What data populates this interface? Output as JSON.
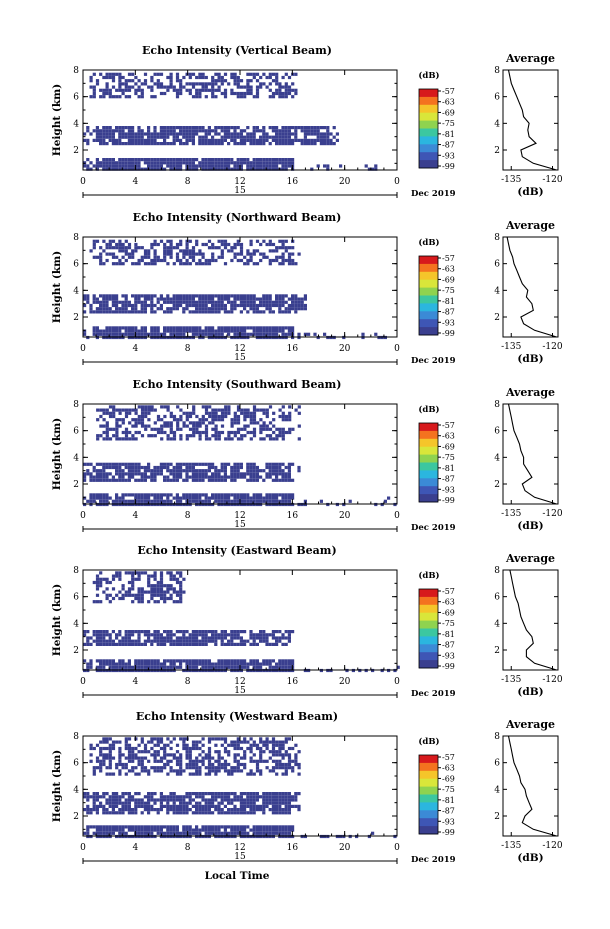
{
  "figure": {
    "xlabel": "Local Time",
    "month_label": "Dec 2019",
    "day_label": "15",
    "avg_title": "Average",
    "unit_label": "(dB)",
    "ylabel": "Height (km)",
    "avg_xlabel": "(dB)",
    "x_ticks": [
      "0",
      "4",
      "8",
      "12",
      "16",
      "20",
      "0"
    ],
    "y_ticks": [
      "2",
      "4",
      "6",
      "8"
    ],
    "colorbar_ticks": [
      "-57",
      "-63",
      "-69",
      "-75",
      "-81",
      "-87",
      "-93",
      "-99"
    ],
    "colorbar_colors": [
      "#d7191c",
      "#f4731f",
      "#f5c52a",
      "#d9e63a",
      "#8fd34f",
      "#3cc7a0",
      "#2bb6df",
      "#3b8ad6",
      "#3e56b5",
      "#3a3f8f"
    ]
  },
  "chart_data": [
    {
      "type": "heatmap",
      "title": "Echo Intensity (Vertical Beam)",
      "ylabel": "Height (km)",
      "xlabel": "Local Time",
      "x_range_hours": [
        0,
        24
      ],
      "y_range_km": [
        0.5,
        8
      ],
      "colorbar": {
        "label": "(dB)",
        "range": [
          -99,
          -57
        ]
      },
      "echo_layers": [
        {
          "height_km": [
            6.0,
            7.8
          ],
          "time_h": [
            0.5,
            16.5
          ],
          "level_db": -99
        },
        {
          "height_km": [
            2.6,
            3.8
          ],
          "time_h": [
            0,
            19.5
          ],
          "level_db": -99
        },
        {
          "height_km": [
            0.5,
            1.4
          ],
          "time_h": [
            0,
            24
          ],
          "level_db": -99
        }
      ],
      "average": {
        "title": "Average",
        "xlabel": "(dB)",
        "x_ticks": [
          "-135",
          "-120"
        ],
        "xlim": [
          -138,
          -118
        ],
        "height_km": [
          0.5,
          1.0,
          1.5,
          2.0,
          2.5,
          3.0,
          3.5,
          4.0,
          4.5,
          5.0,
          5.5,
          6.0,
          6.5,
          7.0,
          7.5,
          8.0
        ],
        "value_db": [
          -118.5,
          -127.0,
          -131.0,
          -131.5,
          -126.0,
          -128.5,
          -129.0,
          -128.5,
          -130.5,
          -131.0,
          -132.0,
          -133.0,
          -134.0,
          -135.0,
          -135.5,
          -136.0
        ]
      }
    },
    {
      "type": "heatmap",
      "title": "Echo Intensity (Northward Beam)",
      "ylabel": "Height (km)",
      "xlabel": "Local Time",
      "x_range_hours": [
        0,
        24
      ],
      "y_range_km": [
        0.5,
        8
      ],
      "colorbar": {
        "label": "(dB)",
        "range": [
          -99,
          -57
        ]
      },
      "echo_layers": [
        {
          "height_km": [
            6.0,
            7.8
          ],
          "time_h": [
            0.5,
            16.5
          ],
          "level_db": -99
        },
        {
          "height_km": [
            2.5,
            3.7
          ],
          "time_h": [
            0,
            17
          ],
          "level_db": -99
        },
        {
          "height_km": [
            0.5,
            1.3
          ],
          "time_h": [
            0,
            24
          ],
          "level_db": -99
        }
      ],
      "average": {
        "title": "Average",
        "xlabel": "(dB)",
        "x_ticks": [
          "-135",
          "-120"
        ],
        "xlim": [
          -138,
          -118
        ],
        "height_km": [
          0.5,
          1.0,
          1.5,
          2.0,
          2.5,
          3.0,
          3.5,
          4.0,
          4.5,
          5.0,
          5.5,
          6.0,
          6.5,
          7.0,
          7.5,
          8.0
        ],
        "value_db": [
          -118.5,
          -126.5,
          -130.5,
          -131.5,
          -127.0,
          -127.5,
          -129.5,
          -129.0,
          -131.0,
          -132.0,
          -133.0,
          -134.0,
          -134.5,
          -135.5,
          -136.0,
          -136.5
        ]
      }
    },
    {
      "type": "heatmap",
      "title": "Echo Intensity (Southward Beam)",
      "ylabel": "Height (km)",
      "xlabel": "Local Time",
      "x_range_hours": [
        0,
        24
      ],
      "y_range_km": [
        0.5,
        8
      ],
      "colorbar": {
        "label": "(dB)",
        "range": [
          -99,
          -57
        ]
      },
      "echo_layers": [
        {
          "height_km": [
            5.5,
            7.9
          ],
          "time_h": [
            1,
            16.5
          ],
          "level_db": -99
        },
        {
          "height_km": [
            2.2,
            3.6
          ],
          "time_h": [
            0,
            16.5
          ],
          "level_db": -99
        },
        {
          "height_km": [
            0.5,
            1.3
          ],
          "time_h": [
            0,
            24
          ],
          "level_db": -99
        }
      ],
      "average": {
        "title": "Average",
        "xlabel": "(dB)",
        "x_ticks": [
          "-135",
          "-120"
        ],
        "xlim": [
          -138,
          -118
        ],
        "height_km": [
          0.5,
          1.0,
          1.5,
          2.0,
          2.5,
          3.0,
          3.5,
          4.0,
          4.5,
          5.0,
          5.5,
          6.0,
          6.5,
          7.0,
          7.5,
          8.0
        ],
        "value_db": [
          -118.5,
          -126.5,
          -130.0,
          -131.0,
          -127.5,
          -129.0,
          -130.5,
          -130.5,
          -131.5,
          -132.0,
          -133.0,
          -134.0,
          -134.5,
          -135.0,
          -135.5,
          -136.0
        ]
      }
    },
    {
      "type": "heatmap",
      "title": "Echo Intensity (Eastward Beam)",
      "ylabel": "Height (km)",
      "xlabel": "Local Time",
      "x_range_hours": [
        0,
        24
      ],
      "y_range_km": [
        0.5,
        8
      ],
      "colorbar": {
        "label": "(dB)",
        "range": [
          -99,
          -57
        ]
      },
      "echo_layers": [
        {
          "height_km": [
            5.5,
            7.9
          ],
          "time_h": [
            0.5,
            8
          ],
          "level_db": -99
        },
        {
          "height_km": [
            2.3,
            3.5
          ],
          "time_h": [
            0,
            16
          ],
          "level_db": -99
        },
        {
          "height_km": [
            0.5,
            1.3
          ],
          "time_h": [
            0,
            24
          ],
          "level_db": -99
        }
      ],
      "average": {
        "title": "Average",
        "xlabel": "(dB)",
        "x_ticks": [
          "-135",
          "-120"
        ],
        "xlim": [
          -138,
          -118
        ],
        "height_km": [
          0.5,
          1.0,
          1.5,
          2.0,
          2.5,
          3.0,
          3.5,
          4.0,
          4.5,
          5.0,
          5.5,
          6.0,
          6.5,
          7.0,
          7.5,
          8.0
        ],
        "value_db": [
          -118.5,
          -126.5,
          -129.5,
          -129.5,
          -127.0,
          -127.5,
          -129.5,
          -130.5,
          -131.5,
          -132.0,
          -132.5,
          -133.5,
          -134.0,
          -134.5,
          -135.0,
          -135.5
        ]
      }
    },
    {
      "type": "heatmap",
      "title": "Echo Intensity (Westward Beam)",
      "ylabel": "Height (km)",
      "xlabel": "Local Time",
      "x_range_hours": [
        0,
        24
      ],
      "y_range_km": [
        0.5,
        8
      ],
      "colorbar": {
        "label": "(dB)",
        "range": [
          -99,
          -57
        ]
      },
      "echo_layers": [
        {
          "height_km": [
            5.2,
            7.9
          ],
          "time_h": [
            0.5,
            16.5
          ],
          "level_db": -99
        },
        {
          "height_km": [
            2.3,
            3.8
          ],
          "time_h": [
            0,
            16.5
          ],
          "level_db": -99
        },
        {
          "height_km": [
            0.5,
            1.3
          ],
          "time_h": [
            0,
            24
          ],
          "level_db": -99
        }
      ],
      "average": {
        "title": "Average",
        "xlabel": "(dB)",
        "x_ticks": [
          "-135",
          "-120"
        ],
        "xlim": [
          -138,
          -118
        ],
        "height_km": [
          0.5,
          1.0,
          1.5,
          2.0,
          2.5,
          3.0,
          3.5,
          4.0,
          4.5,
          5.0,
          5.5,
          6.0,
          6.5,
          7.0,
          7.5,
          8.0
        ],
        "value_db": [
          -118.5,
          -127.0,
          -131.0,
          -130.0,
          -127.5,
          -128.5,
          -129.5,
          -130.0,
          -131.5,
          -132.0,
          -133.0,
          -134.0,
          -134.5,
          -135.0,
          -135.5,
          -136.0
        ]
      }
    }
  ]
}
